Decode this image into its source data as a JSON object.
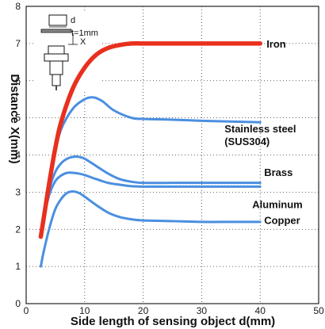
{
  "chart_data": {
    "type": "line",
    "xlabel": "Side length of sensing object d(mm)",
    "ylabel": "Distance X(mm)",
    "xlim": [
      0,
      50
    ],
    "ylim": [
      0,
      8
    ],
    "x_ticks": [
      "0",
      "10",
      "20",
      "30",
      "40",
      "50"
    ],
    "y_ticks": [
      "0",
      "1",
      "2",
      "3",
      "4",
      "5",
      "6",
      "7",
      "8"
    ],
    "grid": true,
    "series": [
      {
        "name": "Iron",
        "color": "#e8301e",
        "x": [
          2.5,
          3,
          4,
          5,
          6,
          8,
          10,
          12,
          14,
          16,
          18,
          20,
          25,
          30,
          35,
          40
        ],
        "y": [
          1.8,
          2.3,
          3.3,
          4.2,
          4.9,
          5.8,
          6.35,
          6.7,
          6.88,
          6.96,
          7.0,
          7.0,
          7.0,
          7.0,
          7.0,
          7.0
        ]
      },
      {
        "name": "Stainless steel (SUS304)",
        "label_lines": [
          "Stainless steel",
          "(SUS304)"
        ],
        "color": "#4a8fe0",
        "x": [
          2.5,
          3,
          4,
          5,
          6,
          8,
          10,
          11.5,
          13,
          15,
          18,
          20,
          25,
          30,
          35,
          40
        ],
        "y": [
          1.8,
          2.3,
          3.3,
          4.1,
          4.7,
          5.25,
          5.5,
          5.55,
          5.45,
          5.2,
          5.0,
          4.97,
          4.95,
          4.92,
          4.9,
          4.88
        ]
      },
      {
        "name": "Brass",
        "color": "#4a8fe0",
        "x": [
          2.5,
          3,
          4,
          5,
          6,
          7,
          8,
          9,
          10,
          12,
          14,
          16,
          18,
          20,
          25,
          30,
          35,
          40
        ],
        "y": [
          1.8,
          2.3,
          3.1,
          3.55,
          3.78,
          3.9,
          3.95,
          3.95,
          3.9,
          3.7,
          3.5,
          3.35,
          3.28,
          3.25,
          3.25,
          3.25,
          3.25,
          3.25
        ]
      },
      {
        "name": "Aluminum",
        "color": "#4a8fe0",
        "x": [
          2.5,
          3,
          4,
          5,
          6,
          7,
          8,
          9,
          10,
          12,
          14,
          16,
          18,
          20,
          25,
          30,
          35,
          40
        ],
        "y": [
          1.8,
          2.3,
          2.95,
          3.3,
          3.45,
          3.52,
          3.52,
          3.5,
          3.46,
          3.35,
          3.25,
          3.2,
          3.16,
          3.15,
          3.15,
          3.15,
          3.15,
          3.15
        ]
      },
      {
        "name": "Copper",
        "color": "#4a8fe0",
        "x": [
          2.5,
          3,
          4,
          5,
          6,
          7,
          8,
          9,
          10,
          12,
          14,
          16,
          18,
          20,
          25,
          30,
          35,
          40
        ],
        "y": [
          1.0,
          1.4,
          2.05,
          2.55,
          2.82,
          2.98,
          3.02,
          2.98,
          2.88,
          2.65,
          2.45,
          2.33,
          2.27,
          2.24,
          2.22,
          2.2,
          2.2,
          2.2
        ]
      }
    ],
    "label_y": [
      7.0,
      5.1,
      3.35,
      2.95,
      2.25
    ],
    "inset": {
      "d_label": "d",
      "x_label": "X",
      "t_label": "t=1mm"
    }
  }
}
